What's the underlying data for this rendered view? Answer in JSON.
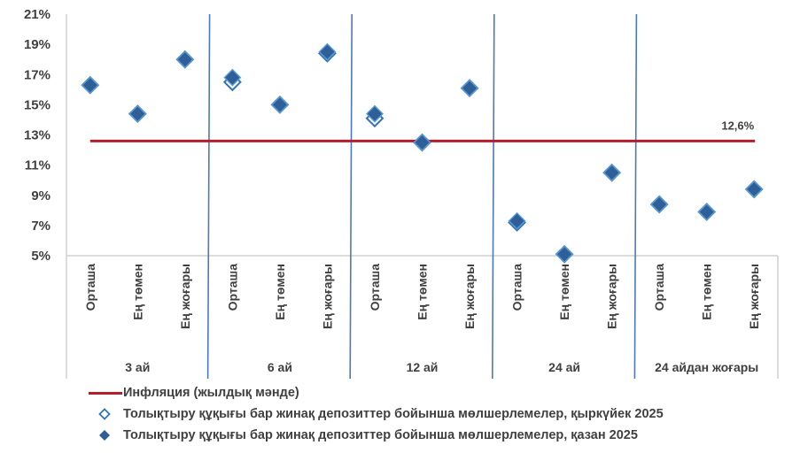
{
  "chart_data": {
    "type": "scatter",
    "title": "",
    "xlabel": "",
    "ylabel": "",
    "ylim": [
      5,
      21
    ],
    "yticks": [
      "5%",
      "7%",
      "9%",
      "11%",
      "13%",
      "15%",
      "17%",
      "19%",
      "21%"
    ],
    "ytick_values": [
      5,
      7,
      9,
      11,
      13,
      15,
      17,
      19,
      21
    ],
    "grid": false,
    "groups": [
      {
        "label": "3 ай",
        "categories": [
          "Орташа",
          "Ең төмен",
          "Ең жоғары"
        ]
      },
      {
        "label": "6 ай",
        "categories": [
          "Орташа",
          "Ең төмен",
          "Ең жоғары"
        ]
      },
      {
        "label": "12 ай",
        "categories": [
          "Орташа",
          "Ең төмен",
          "Ең жоғары"
        ]
      },
      {
        "label": "24 ай",
        "categories": [
          "Орташа",
          "Ең төмен",
          "Ең жоғары"
        ]
      },
      {
        "label": "24 айдан жоғары",
        "categories": [
          "Орташа",
          "Ең төмен",
          "Ең жоғары"
        ]
      }
    ],
    "series": [
      {
        "name": "Толықтыру құқығы бар жинақ депозиттер бойынша мөлшерлемелер, қыркүйек 2025",
        "marker": "hollow-diamond",
        "color": "#2e75b6",
        "values": [
          16.3,
          14.4,
          18.0,
          16.5,
          15.0,
          18.4,
          14.1,
          12.5,
          16.1,
          7.2,
          5.1,
          10.5,
          8.4,
          7.9,
          9.4
        ]
      },
      {
        "name": "Толықтыру құқығы бар жинақ депозиттер бойынша мөлшерлемелер, қазан 2025",
        "marker": "filled-diamond",
        "color": "#2f5f98",
        "values": [
          16.3,
          14.4,
          18.0,
          16.8,
          15.0,
          18.5,
          14.4,
          12.5,
          16.1,
          7.3,
          5.1,
          10.5,
          8.4,
          7.9,
          9.4
        ]
      }
    ],
    "reference_line": {
      "name": "Инфляция (жылдық мәнде)",
      "value": 12.6,
      "label": "12,6%",
      "color": "#b41e2a"
    },
    "legend_position": "bottom-left"
  },
  "legend": [
    {
      "label": "Инфляция (жылдық мәнде)",
      "key": "line"
    },
    {
      "label": "Толықтыру құқығы бар жинақ депозиттер бойынша мөлшерлемелер, қыркүйек 2025",
      "key": "hollow-diamond"
    },
    {
      "label": "Толықтыру құқығы бар жинақ депозиттер бойынша мөлшерлемелер, қазан 2025",
      "key": "filled-diamond"
    }
  ]
}
